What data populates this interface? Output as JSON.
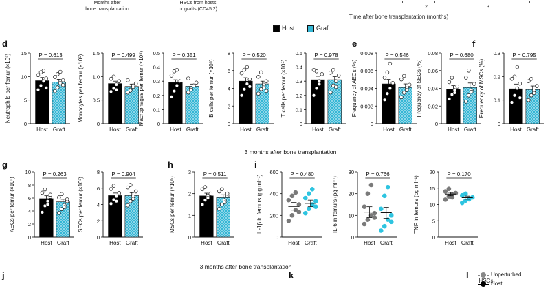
{
  "header": {
    "months_after": "Months after\nbone transplantation",
    "hscs_from": "HSCs from hosts\nor grafts (CD45.2)",
    "tick_2": "2",
    "tick_3": "3",
    "time_label": "Time after bone transplantation (months)"
  },
  "legend": {
    "host": "Host",
    "graft": "Graft"
  },
  "colors": {
    "host": "#000000",
    "graft": "#35b7d5",
    "grey_dot": "#7a7a7a",
    "cyan_dot": "#2ec4e0"
  },
  "panels": {
    "d": "d",
    "e": "e",
    "f": "f",
    "g": "g",
    "h": "h",
    "i": "i",
    "j": "j",
    "k": "k",
    "l": "l"
  },
  "captions": {
    "row1": "3 months after bone transplantation",
    "row2": "3 months after bone transplantation"
  },
  "bottom_legend": {
    "unperturbed": "Unperturbed",
    "host": "Host",
    "hscs": "HSCs"
  },
  "chart_data": [
    {
      "id": "neutrophils",
      "type": "bar",
      "categories": [
        "Host",
        "Graft"
      ],
      "values": [
        9.1,
        8.8
      ],
      "errors": [
        0.7,
        0.6
      ],
      "ylabel": "Neutrophils per femur (×10⁵)",
      "ylim": [
        0,
        15
      ],
      "yticks": [
        "0",
        "5",
        "10",
        "15"
      ],
      "pvalue": "P = 0.613",
      "points": [
        [
          7.2,
          8.1,
          9.0,
          9.6,
          10.3,
          10.9,
          11.2,
          7.6
        ],
        [
          6.9,
          7.7,
          8.6,
          9.2,
          9.9,
          10.5,
          11.0,
          8.2
        ]
      ]
    },
    {
      "id": "monocytes",
      "type": "bar",
      "categories": [
        "Host",
        "Graft"
      ],
      "values": [
        0.85,
        0.79
      ],
      "errors": [
        0.05,
        0.05
      ],
      "ylabel": "Monocytes per femur (×10⁵)",
      "ylim": [
        0,
        1.5
      ],
      "yticks": [
        "0",
        "0.5",
        "1.0",
        "1.5"
      ],
      "pvalue": "P = 0.499",
      "points": [
        [
          0.68,
          0.75,
          0.83,
          0.9,
          0.95,
          1.0,
          0.72
        ],
        [
          0.66,
          0.72,
          0.78,
          0.85,
          0.92,
          0.7,
          0.81
        ]
      ]
    },
    {
      "id": "macrophages",
      "type": "bar",
      "categories": [
        "Host",
        "Graft"
      ],
      "values": [
        0.29,
        0.265
      ],
      "errors": [
        0.02,
        0.015
      ],
      "ylabel": "Macrophages per femur (×10⁵)",
      "ylim": [
        0,
        0.5
      ],
      "yticks": [
        "0",
        "0.1",
        "0.2",
        "0.3",
        "0.4",
        "0.5"
      ],
      "pvalue": "P = 0.351",
      "points": [
        [
          0.19,
          0.23,
          0.27,
          0.3,
          0.34,
          0.37,
          0.38
        ],
        [
          0.22,
          0.25,
          0.27,
          0.29,
          0.32,
          0.24
        ]
      ]
    },
    {
      "id": "bcells",
      "type": "bar",
      "categories": [
        "Host",
        "Graft"
      ],
      "values": [
        4.8,
        4.5
      ],
      "errors": [
        0.4,
        0.3
      ],
      "ylabel": "B cells per femur (×10⁵)",
      "ylim": [
        0,
        8
      ],
      "yticks": [
        "0",
        "2",
        "4",
        "6",
        "8"
      ],
      "pvalue": "P = 0.520",
      "points": [
        [
          3.2,
          3.9,
          4.5,
          5.0,
          5.7,
          6.1,
          6.4,
          4.2
        ],
        [
          3.4,
          3.9,
          4.4,
          4.8,
          5.3,
          5.8,
          4.1,
          3.7
        ]
      ]
    },
    {
      "id": "tcells",
      "type": "bar",
      "categories": [
        "Host",
        "Graft"
      ],
      "values": [
        0.31,
        0.31
      ],
      "errors": [
        0.025,
        0.022
      ],
      "ylabel": "T cells per femur (×10⁵)",
      "ylim": [
        0,
        0.5
      ],
      "yticks": [
        "0",
        "0.1",
        "0.2",
        "0.3",
        "0.4",
        "0.5"
      ],
      "pvalue": "P = 0.978",
      "points": [
        [
          0.2,
          0.25,
          0.3,
          0.35,
          0.38,
          0.37,
          0.28
        ],
        [
          0.22,
          0.27,
          0.3,
          0.34,
          0.36,
          0.38,
          0.26
        ]
      ]
    },
    {
      "id": "aec_freq",
      "type": "bar",
      "categories": [
        "Host",
        "Graft"
      ],
      "values": [
        0.0045,
        0.0041
      ],
      "errors": [
        0.0005,
        0.0004
      ],
      "ylabel": "Frequency of AECs (%)",
      "ylim": [
        0,
        0.008
      ],
      "yticks": [
        "0",
        "0.002",
        "0.004",
        "0.006",
        "0.008"
      ],
      "pvalue": "P = 0.546",
      "points": [
        [
          0.0027,
          0.0034,
          0.004,
          0.0046,
          0.0052,
          0.0058,
          0.0068
        ],
        [
          0.003,
          0.0035,
          0.004,
          0.0044,
          0.005,
          0.0054,
          0.0038
        ]
      ]
    },
    {
      "id": "sec_freq",
      "type": "bar",
      "categories": [
        "Host",
        "Graft"
      ],
      "values": [
        0.039,
        0.041
      ],
      "errors": [
        0.004,
        0.005
      ],
      "ylabel": "Frequency of SECs (%)",
      "ylim": [
        0,
        0.08
      ],
      "yticks": [
        "0",
        "0.02",
        "0.04",
        "0.06",
        "0.08"
      ],
      "pvalue": "P = 0.680",
      "points": [
        [
          0.028,
          0.033,
          0.038,
          0.042,
          0.047,
          0.052,
          0.035
        ],
        [
          0.025,
          0.032,
          0.038,
          0.045,
          0.052,
          0.06,
          0.036
        ]
      ]
    },
    {
      "id": "msc_freq",
      "type": "bar",
      "categories": [
        "Host",
        "Graft"
      ],
      "values": [
        0.148,
        0.145
      ],
      "errors": [
        0.02,
        0.015
      ],
      "ylabel": "Frequency of MSCs (%)",
      "ylim": [
        0,
        0.3
      ],
      "yticks": [
        "0",
        "0.1",
        "0.2",
        "0.3"
      ],
      "pvalue": "P = 0.795",
      "points": [
        [
          0.09,
          0.12,
          0.15,
          0.17,
          0.19,
          0.2,
          0.24,
          0.11
        ],
        [
          0.1,
          0.12,
          0.14,
          0.16,
          0.18,
          0.19,
          0.13
        ]
      ]
    },
    {
      "id": "aecs",
      "type": "bar",
      "categories": [
        "Host",
        "Graft"
      ],
      "values": [
        5.9,
        5.4
      ],
      "errors": [
        0.45,
        0.4
      ],
      "ylabel": "AECs per femur (×10³)",
      "ylim": [
        0,
        10
      ],
      "yticks": [
        "0",
        "2",
        "4",
        "6",
        "8",
        "10"
      ],
      "pvalue": "P = 0.263",
      "points": [
        [
          3.8,
          4.8,
          5.5,
          6.2,
          6.8,
          7.3,
          5.0,
          6.5
        ],
        [
          3.7,
          4.3,
          4.9,
          5.5,
          6.1,
          6.6,
          4.6,
          5.8
        ]
      ]
    },
    {
      "id": "secs",
      "type": "bar",
      "categories": [
        "Host",
        "Graft"
      ],
      "values": [
        5.1,
        5.1
      ],
      "errors": [
        0.3,
        0.35
      ],
      "ylabel": "SECs per femur (×10³)",
      "ylim": [
        0,
        8
      ],
      "yticks": [
        "0",
        "2",
        "4",
        "6",
        "8"
      ],
      "pvalue": "P = 0.904",
      "points": [
        [
          4.1,
          4.6,
          5.0,
          5.4,
          5.9,
          6.3,
          4.4
        ],
        [
          3.9,
          4.4,
          5.0,
          5.6,
          6.1,
          6.4,
          4.7
        ]
      ]
    },
    {
      "id": "mscs",
      "type": "bar",
      "categories": [
        "Host",
        "Graft"
      ],
      "values": [
        1.9,
        1.82
      ],
      "errors": [
        0.12,
        0.13
      ],
      "ylabel": "MSCs per femur (×10⁵)",
      "ylim": [
        0,
        3
      ],
      "yticks": [
        "0",
        "1",
        "2",
        "3"
      ],
      "pvalue": "P = 0.511",
      "points": [
        [
          1.5,
          1.7,
          1.9,
          2.0,
          2.2,
          2.3,
          1.8
        ],
        [
          1.3,
          1.5,
          1.7,
          1.9,
          2.1,
          2.2,
          1.6,
          2.0
        ]
      ]
    },
    {
      "id": "il1b",
      "type": "scatter",
      "categories": [
        "Host",
        "Graft"
      ],
      "values": [
        283,
        310
      ],
      "errors": [
        35,
        30
      ],
      "ylabel": "IL-1β in femurs (pg ml⁻¹)",
      "ylim": [
        0,
        600
      ],
      "yticks": [
        "0",
        "200",
        "400",
        "600"
      ],
      "pvalue": "P = 0.480",
      "points": [
        [
          150,
          200,
          250,
          300,
          340,
          380,
          410,
          230
        ],
        [
          220,
          260,
          300,
          330,
          360,
          400,
          440,
          280
        ]
      ]
    },
    {
      "id": "il6",
      "type": "scatter",
      "categories": [
        "Host",
        "Graft"
      ],
      "values": [
        11.5,
        11.2
      ],
      "errors": [
        2.5,
        2.5
      ],
      "ylabel": "IL-6 in femurs (pg ml⁻¹)",
      "ylim": [
        0,
        30
      ],
      "yticks": [
        "0",
        "10",
        "20",
        "30"
      ],
      "pvalue": "P = 0.766",
      "points": [
        [
          6,
          8,
          10,
          11,
          14,
          20,
          24,
          9
        ],
        [
          3,
          5,
          8,
          10,
          13,
          19,
          23,
          7
        ]
      ]
    },
    {
      "id": "tnf",
      "type": "scatter",
      "categories": [
        "Host",
        "Graft"
      ],
      "values": [
        13.2,
        12.1
      ],
      "errors": [
        0.5,
        0.5
      ],
      "ylabel": "TNF in femurs (pg ml⁻¹)",
      "ylim": [
        0,
        20
      ],
      "yticks": [
        "0",
        "5",
        "10",
        "15",
        "20"
      ],
      "pvalue": "P = 0.170",
      "points": [
        [
          11.5,
          12.5,
          13.0,
          13.5,
          14.0,
          14.8,
          12.2
        ],
        [
          10.5,
          11.2,
          11.8,
          12.2,
          12.8,
          13.3,
          11.6
        ]
      ]
    }
  ]
}
